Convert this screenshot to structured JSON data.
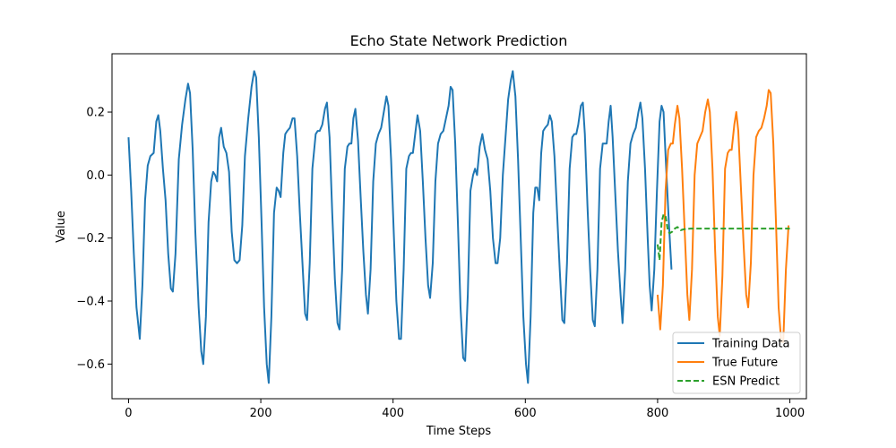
{
  "chart_data": {
    "type": "line",
    "title": "Echo State Network Prediction",
    "xlabel": "Time Steps",
    "ylabel": "Value",
    "xlim": [
      -25,
      1025
    ],
    "ylim": [
      -0.71,
      0.385
    ],
    "x_ticks": [
      0,
      200,
      400,
      600,
      800,
      1000
    ],
    "y_ticks": [
      -0.6,
      -0.4,
      -0.2,
      0.0,
      0.2
    ],
    "x_tick_labels": [
      "0",
      "200",
      "400",
      "600",
      "800",
      "1000"
    ],
    "y_tick_labels": [
      "−0.6",
      "−0.4",
      "−0.2",
      "0.0",
      "0.2"
    ],
    "legend_position": "lower-right",
    "grid": false,
    "series": [
      {
        "name": "Training Data",
        "color": "#1f77b4",
        "style": "solid",
        "points": [
          [
            0,
            0.12
          ],
          [
            4,
            -0.05
          ],
          [
            8,
            -0.25
          ],
          [
            12,
            -0.42
          ],
          [
            17,
            -0.52
          ],
          [
            21,
            -0.35
          ],
          [
            25,
            -0.08
          ],
          [
            29,
            0.03
          ],
          [
            33,
            0.06
          ],
          [
            38,
            0.07
          ],
          [
            42,
            0.17
          ],
          [
            45,
            0.19
          ],
          [
            48,
            0.14
          ],
          [
            52,
            0.02
          ],
          [
            56,
            -0.08
          ],
          [
            60,
            -0.25
          ],
          [
            64,
            -0.36
          ],
          [
            67,
            -0.37
          ],
          [
            71,
            -0.25
          ],
          [
            76,
            0.05
          ],
          [
            81,
            0.16
          ],
          [
            86,
            0.24
          ],
          [
            90,
            0.29
          ],
          [
            93,
            0.26
          ],
          [
            97,
            0.08
          ],
          [
            101,
            -0.18
          ],
          [
            106,
            -0.42
          ],
          [
            110,
            -0.56
          ],
          [
            113,
            -0.6
          ],
          [
            117,
            -0.45
          ],
          [
            121,
            -0.15
          ],
          [
            125,
            -0.02
          ],
          [
            128,
            0.01
          ],
          [
            131,
            0.0
          ],
          [
            134,
            -0.02
          ],
          [
            137,
            0.12
          ],
          [
            140,
            0.15
          ],
          [
            144,
            0.09
          ],
          [
            148,
            0.07
          ],
          [
            152,
            0.01
          ],
          [
            156,
            -0.18
          ],
          [
            160,
            -0.27
          ],
          [
            164,
            -0.28
          ],
          [
            168,
            -0.27
          ],
          [
            172,
            -0.16
          ],
          [
            176,
            0.06
          ],
          [
            181,
            0.18
          ],
          [
            186,
            0.28
          ],
          [
            190,
            0.33
          ],
          [
            193,
            0.31
          ],
          [
            197,
            0.12
          ],
          [
            201,
            -0.14
          ],
          [
            205,
            -0.42
          ],
          [
            209,
            -0.6
          ],
          [
            212,
            -0.66
          ],
          [
            216,
            -0.45
          ],
          [
            220,
            -0.12
          ],
          [
            224,
            -0.04
          ],
          [
            227,
            -0.05
          ],
          [
            230,
            -0.07
          ],
          [
            234,
            0.07
          ],
          [
            237,
            0.13
          ],
          [
            240,
            0.14
          ],
          [
            244,
            0.15
          ],
          [
            248,
            0.18
          ],
          [
            251,
            0.18
          ],
          [
            255,
            0.06
          ],
          [
            259,
            -0.12
          ],
          [
            263,
            -0.28
          ],
          [
            267,
            -0.44
          ],
          [
            270,
            -0.46
          ],
          [
            274,
            -0.28
          ],
          [
            278,
            0.02
          ],
          [
            283,
            0.13
          ],
          [
            286,
            0.14
          ],
          [
            289,
            0.14
          ],
          [
            293,
            0.16
          ],
          [
            297,
            0.21
          ],
          [
            300,
            0.23
          ],
          [
            304,
            0.12
          ],
          [
            308,
            -0.12
          ],
          [
            312,
            -0.33
          ],
          [
            316,
            -0.47
          ],
          [
            319,
            -0.49
          ],
          [
            323,
            -0.3
          ],
          [
            327,
            0.02
          ],
          [
            331,
            0.09
          ],
          [
            334,
            0.1
          ],
          [
            337,
            0.1
          ],
          [
            340,
            0.18
          ],
          [
            343,
            0.21
          ],
          [
            347,
            0.11
          ],
          [
            351,
            -0.07
          ],
          [
            355,
            -0.24
          ],
          [
            359,
            -0.38
          ],
          [
            362,
            -0.44
          ],
          [
            366,
            -0.3
          ],
          [
            370,
            -0.02
          ],
          [
            374,
            0.1
          ],
          [
            378,
            0.13
          ],
          [
            382,
            0.15
          ],
          [
            386,
            0.2
          ],
          [
            390,
            0.25
          ],
          [
            393,
            0.22
          ],
          [
            397,
            0.05
          ],
          [
            401,
            -0.18
          ],
          [
            405,
            -0.4
          ],
          [
            409,
            -0.52
          ],
          [
            412,
            -0.52
          ],
          [
            416,
            -0.3
          ],
          [
            420,
            0.02
          ],
          [
            424,
            0.06
          ],
          [
            427,
            0.07
          ],
          [
            430,
            0.07
          ],
          [
            434,
            0.14
          ],
          [
            437,
            0.19
          ],
          [
            441,
            0.14
          ],
          [
            445,
            -0.02
          ],
          [
            449,
            -0.2
          ],
          [
            453,
            -0.35
          ],
          [
            456,
            -0.39
          ],
          [
            460,
            -0.28
          ],
          [
            464,
            -0.02
          ],
          [
            468,
            0.1
          ],
          [
            472,
            0.13
          ],
          [
            476,
            0.14
          ],
          [
            480,
            0.18
          ],
          [
            484,
            0.22
          ],
          [
            487,
            0.28
          ],
          [
            490,
            0.27
          ],
          [
            494,
            0.1
          ],
          [
            498,
            -0.15
          ],
          [
            502,
            -0.42
          ],
          [
            506,
            -0.58
          ],
          [
            509,
            -0.59
          ],
          [
            513,
            -0.38
          ],
          [
            517,
            -0.05
          ],
          [
            521,
            0.0
          ],
          [
            524,
            0.02
          ],
          [
            527,
            0.0
          ],
          [
            531,
            0.09
          ],
          [
            535,
            0.13
          ],
          [
            539,
            0.08
          ],
          [
            543,
            0.05
          ],
          [
            547,
            -0.05
          ],
          [
            551,
            -0.2
          ],
          [
            555,
            -0.28
          ],
          [
            558,
            -0.28
          ],
          [
            562,
            -0.2
          ],
          [
            566,
            0.0
          ],
          [
            570,
            0.12
          ],
          [
            574,
            0.24
          ],
          [
            578,
            0.3
          ],
          [
            581,
            0.33
          ],
          [
            585,
            0.25
          ],
          [
            589,
            0.05
          ],
          [
            593,
            -0.2
          ],
          [
            597,
            -0.45
          ],
          [
            601,
            -0.6
          ],
          [
            604,
            -0.66
          ],
          [
            608,
            -0.45
          ],
          [
            612,
            -0.12
          ],
          [
            615,
            -0.04
          ],
          [
            618,
            -0.04
          ],
          [
            621,
            -0.08
          ],
          [
            624,
            0.07
          ],
          [
            627,
            0.14
          ],
          [
            630,
            0.15
          ],
          [
            634,
            0.16
          ],
          [
            637,
            0.19
          ],
          [
            640,
            0.17
          ],
          [
            644,
            0.06
          ],
          [
            648,
            -0.12
          ],
          [
            652,
            -0.3
          ],
          [
            656,
            -0.46
          ],
          [
            659,
            -0.47
          ],
          [
            663,
            -0.28
          ],
          [
            667,
            0.02
          ],
          [
            671,
            0.12
          ],
          [
            674,
            0.13
          ],
          [
            677,
            0.13
          ],
          [
            680,
            0.16
          ],
          [
            684,
            0.22
          ],
          [
            687,
            0.23
          ],
          [
            690,
            0.13
          ],
          [
            694,
            -0.1
          ],
          [
            698,
            -0.3
          ],
          [
            702,
            -0.46
          ],
          [
            705,
            -0.48
          ],
          [
            709,
            -0.3
          ],
          [
            713,
            0.02
          ],
          [
            717,
            0.1
          ],
          [
            720,
            0.1
          ],
          [
            723,
            0.1
          ],
          [
            726,
            0.17
          ],
          [
            729,
            0.22
          ],
          [
            732,
            0.12
          ],
          [
            736,
            -0.06
          ],
          [
            740,
            -0.24
          ],
          [
            744,
            -0.38
          ],
          [
            747,
            -0.47
          ],
          [
            751,
            -0.3
          ],
          [
            755,
            -0.02
          ],
          [
            759,
            0.1
          ],
          [
            763,
            0.13
          ],
          [
            767,
            0.15
          ],
          [
            771,
            0.2
          ],
          [
            774,
            0.23
          ],
          [
            777,
            0.18
          ],
          [
            781,
            0.02
          ],
          [
            785,
            -0.2
          ],
          [
            788,
            -0.35
          ],
          [
            791,
            -0.43
          ],
          [
            795,
            -0.3
          ],
          [
            799,
            -0.05
          ],
          [
            803,
            0.17
          ],
          [
            806,
            0.22
          ],
          [
            809,
            0.2
          ],
          [
            813,
            0.02
          ],
          [
            817,
            -0.15
          ],
          [
            821,
            -0.3
          ]
        ]
      },
      {
        "name": "True Future",
        "color": "#ff7f0e",
        "style": "solid",
        "points": [
          [
            800,
            -0.38
          ],
          [
            804,
            -0.49
          ],
          [
            808,
            -0.35
          ],
          [
            812,
            -0.05
          ],
          [
            816,
            0.08
          ],
          [
            820,
            0.1
          ],
          [
            823,
            0.1
          ],
          [
            826,
            0.16
          ],
          [
            830,
            0.22
          ],
          [
            833,
            0.18
          ],
          [
            837,
            0.02
          ],
          [
            841,
            -0.18
          ],
          [
            845,
            -0.38
          ],
          [
            848,
            -0.46
          ],
          [
            852,
            -0.3
          ],
          [
            856,
            0.0
          ],
          [
            860,
            0.1
          ],
          [
            864,
            0.12
          ],
          [
            868,
            0.14
          ],
          [
            872,
            0.2
          ],
          [
            876,
            0.24
          ],
          [
            879,
            0.2
          ],
          [
            883,
            0.02
          ],
          [
            887,
            -0.24
          ],
          [
            891,
            -0.45
          ],
          [
            894,
            -0.51
          ],
          [
            898,
            -0.32
          ],
          [
            902,
            0.02
          ],
          [
            906,
            0.07
          ],
          [
            909,
            0.08
          ],
          [
            912,
            0.08
          ],
          [
            916,
            0.16
          ],
          [
            919,
            0.2
          ],
          [
            922,
            0.14
          ],
          [
            926,
            -0.04
          ],
          [
            930,
            -0.22
          ],
          [
            934,
            -0.38
          ],
          [
            937,
            -0.42
          ],
          [
            941,
            -0.28
          ],
          [
            945,
            0.0
          ],
          [
            949,
            0.12
          ],
          [
            953,
            0.14
          ],
          [
            957,
            0.15
          ],
          [
            961,
            0.18
          ],
          [
            965,
            0.22
          ],
          [
            968,
            0.27
          ],
          [
            971,
            0.26
          ],
          [
            975,
            0.1
          ],
          [
            979,
            -0.15
          ],
          [
            983,
            -0.42
          ],
          [
            987,
            -0.53
          ],
          [
            990,
            -0.53
          ],
          [
            994,
            -0.3
          ],
          [
            998,
            -0.16
          ]
        ]
      },
      {
        "name": "ESN Predict",
        "color": "#2ca02c",
        "style": "dashed",
        "points": [
          [
            800,
            -0.22
          ],
          [
            803,
            -0.27
          ],
          [
            806,
            -0.15
          ],
          [
            809,
            -0.125
          ],
          [
            812,
            -0.13
          ],
          [
            815,
            -0.17
          ],
          [
            818,
            -0.185
          ],
          [
            822,
            -0.18
          ],
          [
            826,
            -0.17
          ],
          [
            830,
            -0.165
          ],
          [
            835,
            -0.175
          ],
          [
            840,
            -0.172
          ],
          [
            850,
            -0.17
          ],
          [
            870,
            -0.17
          ],
          [
            900,
            -0.17
          ],
          [
            950,
            -0.17
          ],
          [
            1000,
            -0.17
          ]
        ]
      }
    ]
  }
}
